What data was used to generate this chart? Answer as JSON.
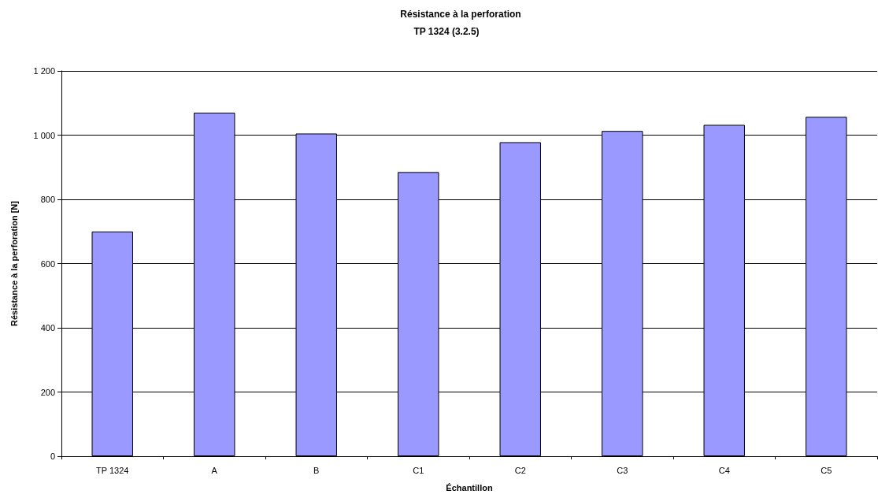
{
  "chart_data": {
    "type": "bar",
    "title": "Résistance à la perforation",
    "subtitle": "TP 1324 (3.2.5)",
    "xlabel": "Échantillon",
    "ylabel": "Résistance à la perforation [N]",
    "categories": [
      "TP 1324",
      "A",
      "B",
      "C1",
      "C2",
      "C3",
      "C4",
      "C5"
    ],
    "values": [
      700,
      1070,
      1005,
      885,
      978,
      1013,
      1032,
      1057
    ],
    "color": "#9999ff",
    "ylim": [
      0,
      1200
    ],
    "yticks": [
      0,
      200,
      400,
      600,
      800,
      {
        "value": 1000,
        "label": "1 000"
      },
      {
        "value": 1200,
        "label": "1 200"
      }
    ],
    "grid": "y"
  }
}
